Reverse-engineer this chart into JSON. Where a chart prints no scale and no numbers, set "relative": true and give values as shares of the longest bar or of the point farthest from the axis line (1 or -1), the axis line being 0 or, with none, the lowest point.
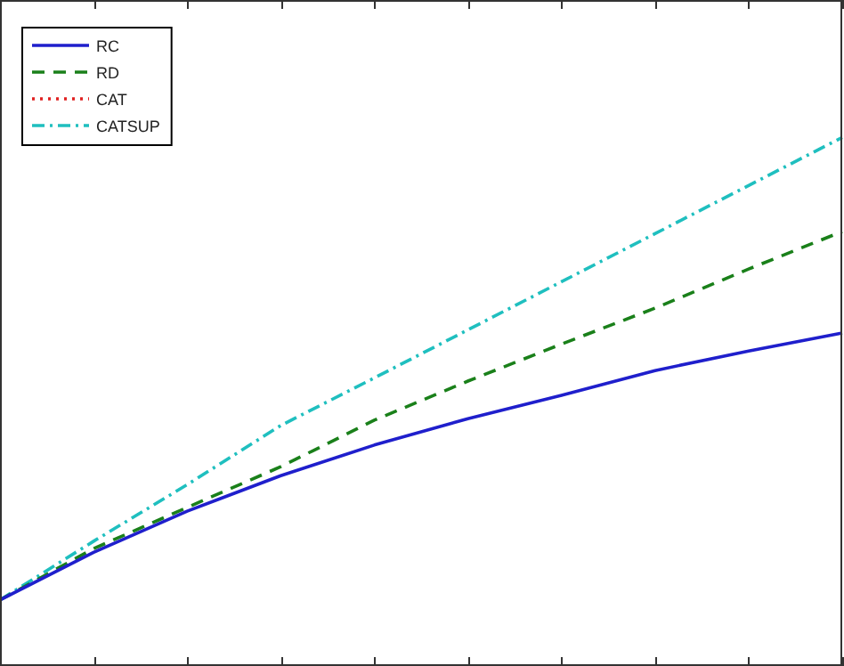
{
  "chart_data": {
    "type": "line",
    "relative": true,
    "categories": [
      null,
      null,
      null,
      null,
      null,
      null,
      null,
      null,
      null,
      null
    ],
    "legend": "top left",
    "grid": false,
    "marker": "none",
    "series": [
      {
        "name": "RC",
        "color": "#1f1fcc",
        "line_style": "solid",
        "values": [
          0.125,
          0.215,
          0.293,
          0.36,
          0.418,
          0.468,
          0.512,
          0.559,
          0.596,
          0.63
        ]
      },
      {
        "name": "RD",
        "color": "#1a801a",
        "line_style": "dashed",
        "values": [
          0.125,
          0.222,
          0.3,
          0.377,
          0.465,
          0.539,
          0.609,
          0.677,
          0.751,
          0.822
        ]
      },
      {
        "name": "CAT",
        "color": "#e02020",
        "line_style": "dotted",
        "values": [
          null,
          null,
          null,
          null,
          null,
          null,
          null,
          null,
          null,
          null
        ]
      },
      {
        "name": "CATSUP",
        "color": "#1fbfbf",
        "line_style": "dashdot",
        "values": [
          0.125,
          0.236,
          0.343,
          0.455,
          0.545,
          0.636,
          0.727,
          0.818,
          0.909,
          1.0
        ]
      }
    ]
  }
}
